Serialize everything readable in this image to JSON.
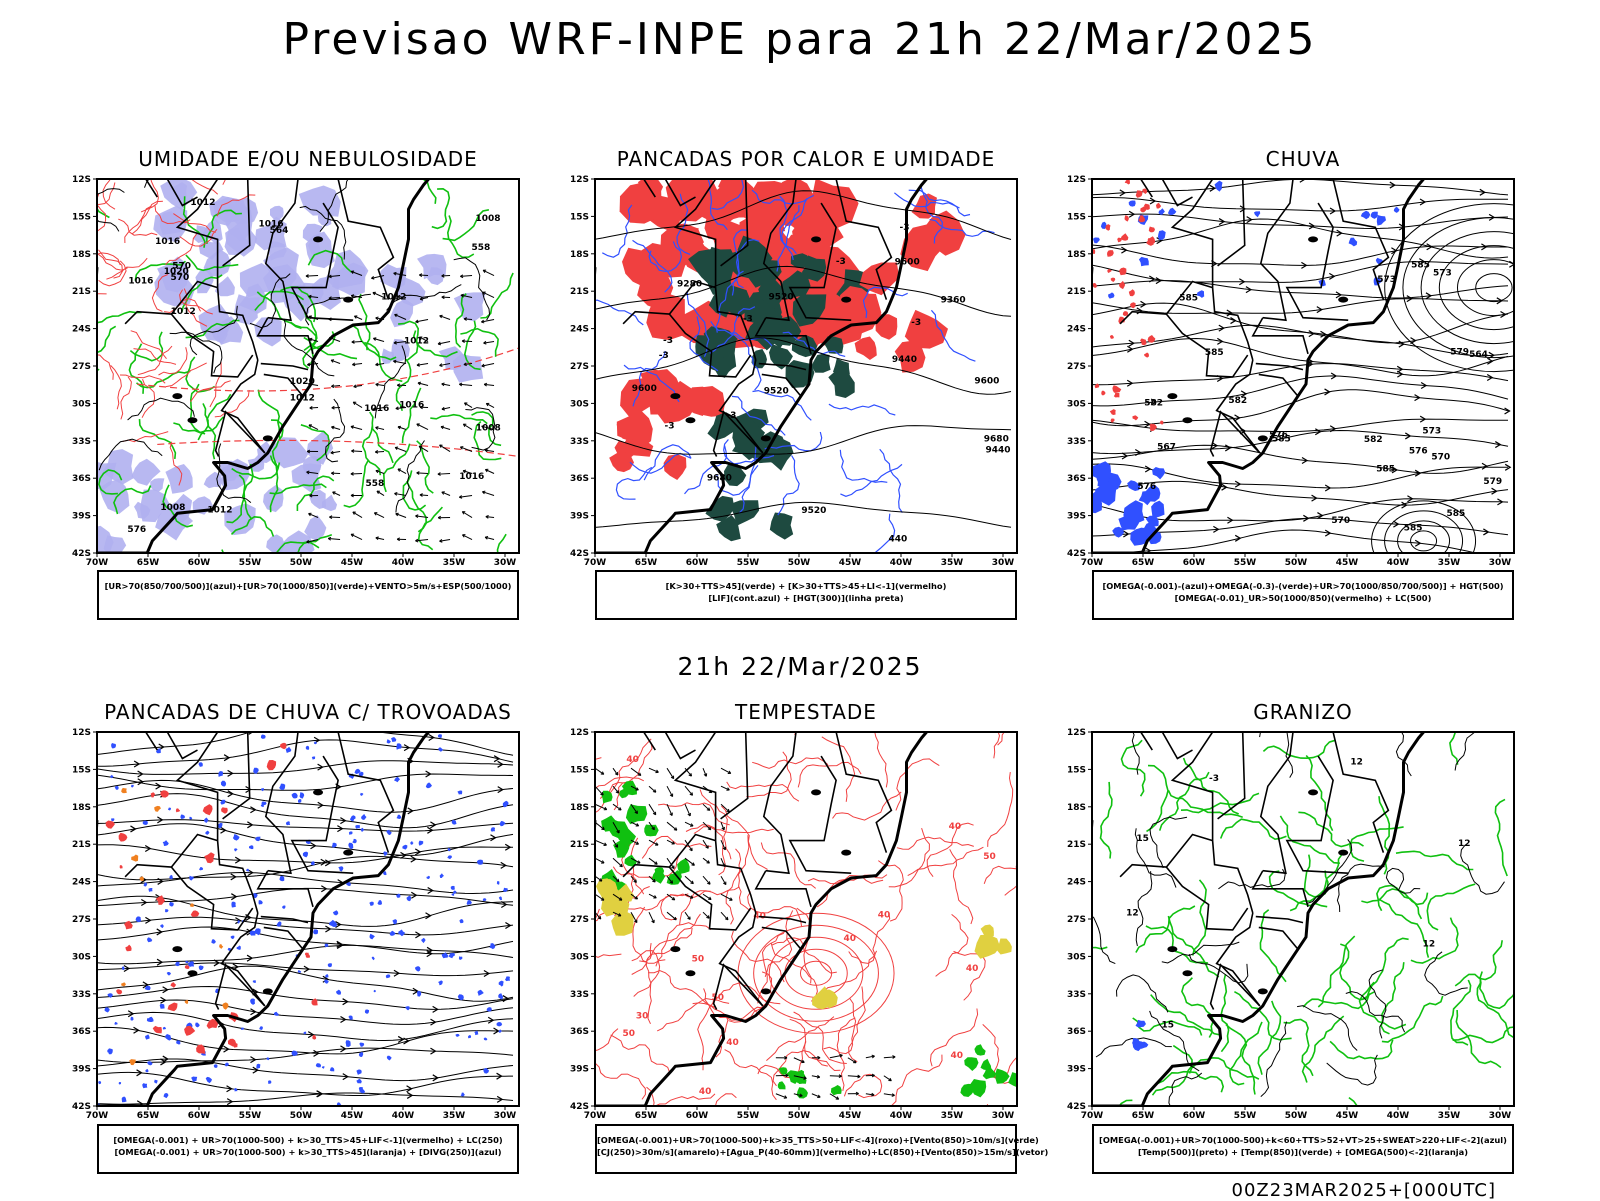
{
  "title": "Previsao WRF-INPE  para 21h 22/Mar/2025",
  "mid_title": "21h 22/Mar/2025",
  "footer": "00Z23MAR2025+[000UTC]",
  "lat_ticks": [
    "12S",
    "15S",
    "18S",
    "21S",
    "24S",
    "27S",
    "30S",
    "33S",
    "36S",
    "39S",
    "42S"
  ],
  "lon_ticks": [
    "70W",
    "65W",
    "60W",
    "55W",
    "50W",
    "45W",
    "40W",
    "35W",
    "30W"
  ],
  "colors": {
    "blue": "#3050ff",
    "green": "#10c010",
    "red": "#f04040",
    "lavender": "#b0b0f0",
    "darkgreen": "#1e4a40",
    "yellow": "#e0d040",
    "orange": "#f08020"
  },
  "panels": [
    {
      "title": "UMIDADE E/OU NEBULOSIDADE",
      "legend": [
        "[UR>70(850/700/500)](azul)+[UR>70(1000/850)](verde)+VENTO>5m/s+ESP(500/1000)"
      ],
      "labels": [
        "1012",
        "1012",
        "1016",
        "1016",
        "1016",
        "1008",
        "1012",
        "1008",
        "1012",
        "1016",
        "1008",
        "1020",
        "1020",
        "1012",
        "1016",
        "1016",
        "1012",
        "570",
        "576",
        "570",
        "564",
        "558",
        "558"
      ]
    },
    {
      "title": "PANCADAS POR CALOR E UMIDADE",
      "legend": [
        "[K>30+TTS>45](verde) + [K>30+TTS>45+LI<-1](vermelho)",
        "[LIF](cont.azul) + [HGT(300)](linha preta)"
      ],
      "labels": [
        "9680",
        "9680",
        "9600",
        "9520",
        "9600",
        "9520",
        "9600",
        "9520",
        "9440",
        "9440",
        "9360",
        "9280",
        "-3",
        "-3",
        "-3",
        "-3",
        "-3",
        "-3",
        "-3",
        "-3",
        "440"
      ]
    },
    {
      "title": "CHUVA",
      "legend": [
        "[OMEGA(-0.001)-(azul)+OMEGA(-0.3)-(verde)+UR>70(1000/850/700/500)] + HGT(500)",
        "[OMEGA(-0.01)_UR>50(1000/850)(vermelho) + LC(500)"
      ],
      "labels": [
        "585",
        "585",
        "585",
        "585",
        "582",
        "582",
        "585",
        "579",
        "576",
        "573",
        "573",
        "570",
        "567",
        "564",
        "576",
        "579",
        "582",
        "585",
        "570",
        "576",
        "573",
        "585"
      ]
    },
    {
      "title": "PANCADAS DE CHUVA C/ TROVOADAS",
      "legend": [
        "[OMEGA(-0.001) + UR>70(1000-500) + k>30_TTS>45+LIF<-1](vermelho) + LC(250)",
        "[OMEGA(-0.001) + UR>70(1000-500) + k>30_TTS>45](laranja) + [DIVG(250)](azul)"
      ],
      "labels": []
    },
    {
      "title": "TEMPESTADE",
      "legend": [
        "[OMEGA(-0.001)+UR>70(1000-500)+k>35_TTS>50+LIF<-4](roxo)+[Vento(850)>10m/s](verde)",
        "[CJ(250)>30m/s](amarelo)+[Agua_P(40-60mm)](vermelho)+LC(850)+[Vento(850)>15m/s](vetor)"
      ],
      "labels": [
        "50",
        "40",
        "40",
        "50",
        "40",
        "50",
        "40",
        "40",
        "40",
        "40",
        "50",
        "40",
        "30",
        "40"
      ]
    },
    {
      "title": "GRANIZO",
      "legend": [
        "[OMEGA(-0.001)+UR>70(1000-500)+k<60+TTS>52+VT>25+SWEAT>220+LIF<-2](azul)",
        "[Temp(500)](preto) + [Temp(850)](verde) + [OMEGA(500)<-2](laranja)"
      ],
      "labels": [
        "-3",
        "12",
        "12",
        "12",
        "15",
        "12",
        "15"
      ]
    }
  ]
}
